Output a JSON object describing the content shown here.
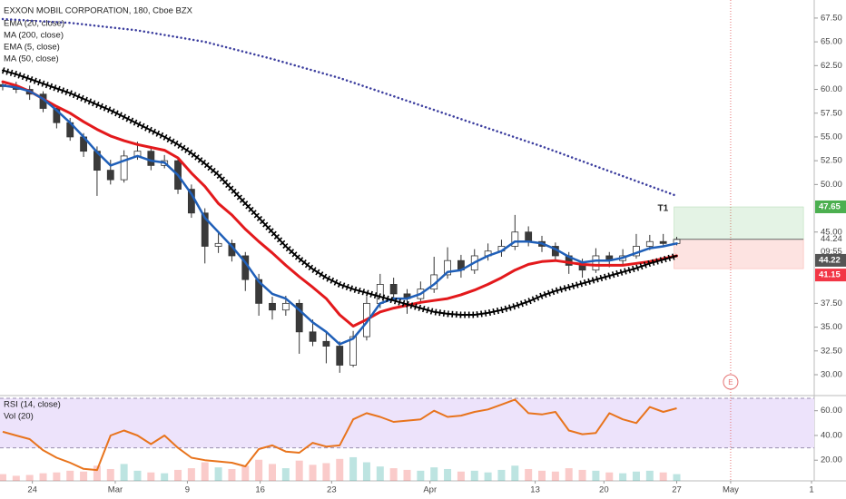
{
  "chart_data": {
    "type": "candlestick",
    "title": "EXXON MOBIL CORPORATION, 180, Cboe BZX",
    "xlim": [
      -0.2,
      60.2
    ],
    "ylim": [
      27.9,
      69.4
    ],
    "xticks": [
      {
        "value": 2.2,
        "label": "24"
      },
      {
        "value": 8.35,
        "label": "Mar"
      },
      {
        "value": 13.7,
        "label": "9"
      },
      {
        "value": 19.1,
        "label": "16"
      },
      {
        "value": 24.4,
        "label": "23"
      },
      {
        "value": 31.7,
        "label": "Apr"
      },
      {
        "value": 39.5,
        "label": "13"
      },
      {
        "value": 44.6,
        "label": "20"
      },
      {
        "value": 50.0,
        "label": "27"
      },
      {
        "value": 54.0,
        "label": "May"
      },
      {
        "value": 60.0,
        "label": "1"
      }
    ],
    "yticks": [
      {
        "value": 67.5,
        "label": "67.50"
      },
      {
        "value": 65,
        "label": "65.00"
      },
      {
        "value": 62.5,
        "label": "62.50"
      },
      {
        "value": 60,
        "label": "60.00"
      },
      {
        "value": 57.5,
        "label": "57.50"
      },
      {
        "value": 55,
        "label": "55.00"
      },
      {
        "value": 52.5,
        "label": "52.50"
      },
      {
        "value": 50,
        "label": "50.00"
      },
      {
        "value": 45,
        "label": "45.00"
      },
      {
        "value": 37.5,
        "label": "37.50"
      },
      {
        "value": 35,
        "label": "35.00"
      },
      {
        "value": 32.5,
        "label": "32.50"
      },
      {
        "value": 30,
        "label": "30.00"
      }
    ],
    "candles": [
      [
        60.5,
        60.9,
        59.9,
        60.3
      ],
      [
        60.3,
        60.8,
        59.6,
        60.0
      ],
      [
        60.0,
        60.4,
        58.9,
        59.5
      ],
      [
        59.5,
        59.8,
        57.6,
        58.0
      ],
      [
        58.0,
        58.3,
        55.9,
        56.5
      ],
      [
        56.5,
        57.0,
        54.6,
        55.0
      ],
      [
        55.0,
        55.4,
        52.9,
        53.5
      ],
      [
        53.5,
        54.0,
        48.8,
        51.5
      ],
      [
        51.5,
        52.6,
        50.0,
        50.5
      ],
      [
        50.5,
        53.6,
        50.2,
        53.0
      ],
      [
        53.0,
        54.5,
        52.6,
        53.5
      ],
      [
        53.5,
        53.9,
        51.5,
        52.0
      ],
      [
        52.0,
        53.1,
        51.7,
        52.5
      ],
      [
        52.5,
        52.8,
        49.0,
        49.5
      ],
      [
        49.5,
        50.0,
        46.5,
        47.0
      ],
      [
        47.0,
        47.5,
        41.7,
        43.5
      ],
      [
        43.5,
        45.0,
        42.8,
        43.8
      ],
      [
        43.8,
        44.2,
        41.9,
        42.5
      ],
      [
        42.5,
        42.9,
        38.8,
        40.0
      ],
      [
        40.0,
        40.6,
        36.2,
        37.5
      ],
      [
        37.5,
        38.2,
        35.8,
        36.8
      ],
      [
        36.8,
        38.3,
        36.2,
        37.5
      ],
      [
        37.5,
        37.9,
        32.2,
        34.5
      ],
      [
        34.5,
        35.8,
        33.0,
        33.5
      ],
      [
        33.5,
        34.6,
        31.2,
        33.0
      ],
      [
        33.0,
        33.5,
        30.2,
        31.0
      ],
      [
        31.0,
        34.6,
        30.8,
        34.0
      ],
      [
        34.0,
        38.2,
        33.6,
        37.5
      ],
      [
        37.5,
        40.6,
        37.0,
        39.5
      ],
      [
        39.5,
        40.2,
        37.9,
        38.5
      ],
      [
        38.5,
        39.0,
        36.4,
        38.0
      ],
      [
        38.0,
        39.8,
        37.6,
        39.0
      ],
      [
        39.0,
        42.4,
        38.6,
        40.5
      ],
      [
        40.5,
        43.4,
        40.1,
        42.0
      ],
      [
        42.0,
        42.6,
        40.2,
        41.0
      ],
      [
        41.0,
        43.2,
        40.6,
        42.5
      ],
      [
        42.5,
        43.8,
        42.0,
        43.0
      ],
      [
        43.0,
        44.2,
        42.4,
        43.5
      ],
      [
        43.5,
        46.8,
        43.1,
        45.0
      ],
      [
        45.0,
        45.6,
        43.5,
        44.0
      ],
      [
        44.0,
        44.6,
        42.9,
        43.5
      ],
      [
        43.5,
        43.9,
        41.9,
        42.5
      ],
      [
        42.5,
        42.9,
        40.6,
        41.5
      ],
      [
        41.5,
        42.2,
        40.2,
        41.0
      ],
      [
        41.0,
        43.3,
        40.7,
        42.5
      ],
      [
        42.5,
        42.9,
        41.3,
        42.0
      ],
      [
        42.0,
        43.2,
        41.6,
        42.5
      ],
      [
        42.5,
        44.8,
        42.2,
        43.5
      ],
      [
        43.5,
        44.7,
        43.1,
        44.0
      ],
      [
        44.0,
        44.8,
        43.4,
        43.8
      ],
      [
        43.8,
        44.5,
        43.6,
        44.22
      ]
    ],
    "series": [
      {
        "name": "EMA (20, close)",
        "color": "#e3191c",
        "style": "solid",
        "values": [
          60.8,
          60.4,
          59.8,
          59.0,
          58.2,
          57.5,
          56.6,
          55.8,
          55.1,
          54.6,
          54.2,
          53.9,
          53.6,
          52.8,
          51.2,
          49.8,
          48.0,
          46.8,
          45.3,
          44.0,
          42.8,
          41.5,
          40.3,
          39.2,
          38.0,
          36.3,
          35.1,
          35.8,
          36.6,
          37.0,
          37.3,
          37.6,
          37.8,
          38.0,
          38.4,
          38.9,
          39.5,
          40.2,
          41.0,
          41.6,
          41.9,
          42.0,
          41.8,
          41.6,
          41.5,
          41.5,
          41.5,
          41.7,
          41.9,
          42.2,
          42.5
        ]
      },
      {
        "name": "MA (200, close)",
        "color": "#3b3d9e",
        "style": "dotted",
        "x": [
          0,
          5,
          10,
          15,
          20,
          25,
          30,
          35,
          40,
          45,
          50
        ],
        "values": [
          67.4,
          67.0,
          66.2,
          65.0,
          63.2,
          61.2,
          58.8,
          56.4,
          54.0,
          51.4,
          48.8
        ]
      },
      {
        "name": "EMA (5, close)",
        "color": "#1f5fb8",
        "style": "solid",
        "values": [
          60.4,
          60.2,
          59.8,
          59.0,
          57.8,
          56.5,
          55.0,
          53.4,
          52.0,
          52.5,
          53.0,
          52.5,
          52.3,
          51.0,
          49.0,
          46.5,
          45.0,
          43.5,
          41.8,
          39.8,
          38.5,
          38.0,
          36.8,
          35.5,
          34.5,
          33.2,
          33.8,
          35.5,
          37.5,
          38.0,
          38.0,
          38.5,
          39.5,
          40.8,
          41.0,
          41.8,
          42.5,
          43.0,
          44.0,
          44.0,
          43.8,
          43.2,
          42.4,
          41.8,
          42.0,
          42.0,
          42.3,
          42.8,
          43.3,
          43.5,
          43.8
        ]
      },
      {
        "name": "MA (50, close)",
        "color": "#000000",
        "style": "cross",
        "values": [
          62.0,
          61.6,
          61.1,
          60.6,
          60.1,
          59.6,
          59.0,
          58.4,
          57.8,
          57.1,
          56.4,
          55.7,
          55.0,
          54.2,
          53.3,
          52.2,
          51.0,
          49.5,
          48.0,
          46.5,
          45.0,
          43.5,
          42.2,
          41.1,
          40.2,
          39.5,
          39.0,
          38.6,
          38.2,
          37.8,
          37.4,
          37.0,
          36.6,
          36.4,
          36.3,
          36.3,
          36.5,
          36.8,
          37.2,
          37.7,
          38.3,
          38.8,
          39.2,
          39.6,
          40.0,
          40.4,
          40.8,
          41.2,
          41.7,
          42.1,
          42.5
        ]
      }
    ],
    "position": {
      "label": "T1",
      "xlim": [
        49.8,
        59.4
      ],
      "target": {
        "value": 47.65,
        "label": "47.65"
      },
      "entry": {
        "value": 44.24,
        "label": "44.24"
      },
      "stop": {
        "value": 41.15,
        "label": "41.15"
      }
    },
    "last_price": {
      "value": 44.22,
      "label": "44.22"
    },
    "countdown": "09:55",
    "event": {
      "x": 54.0,
      "label": "E"
    },
    "rsi": {
      "name": "RSI (14, close)",
      "color": "#e8741d",
      "ylim": [
        3.3,
        71.5
      ],
      "yticks": [
        {
          "value": 60,
          "label": "60.00"
        },
        {
          "value": 40,
          "label": "40.00"
        },
        {
          "value": 20,
          "label": "20.00"
        }
      ],
      "bands": [
        30,
        70
      ],
      "values": [
        43,
        40,
        37,
        28,
        22,
        18,
        13,
        12,
        40,
        44,
        40,
        33,
        40,
        30,
        22,
        20,
        19,
        18,
        15,
        29,
        32,
        27,
        26,
        34,
        31,
        32,
        53,
        58,
        55,
        51,
        52,
        53,
        60,
        55,
        56,
        59,
        61,
        65,
        69,
        58,
        57,
        59,
        44,
        41,
        42,
        58,
        53,
        50,
        63,
        59,
        62
      ]
    },
    "volume": {
      "name": "Vol (20)",
      "ylim": [
        0,
        100
      ],
      "values": [
        8,
        6,
        7,
        9,
        10,
        12,
        11,
        18,
        14,
        20,
        12,
        10,
        9,
        13,
        15,
        22,
        16,
        14,
        18,
        25,
        20,
        15,
        24,
        19,
        21,
        26,
        28,
        22,
        17,
        15,
        13,
        12,
        16,
        14,
        11,
        12,
        10,
        13,
        18,
        14,
        12,
        11,
        15,
        13,
        12,
        10,
        9,
        11,
        12,
        10,
        8
      ]
    }
  }
}
